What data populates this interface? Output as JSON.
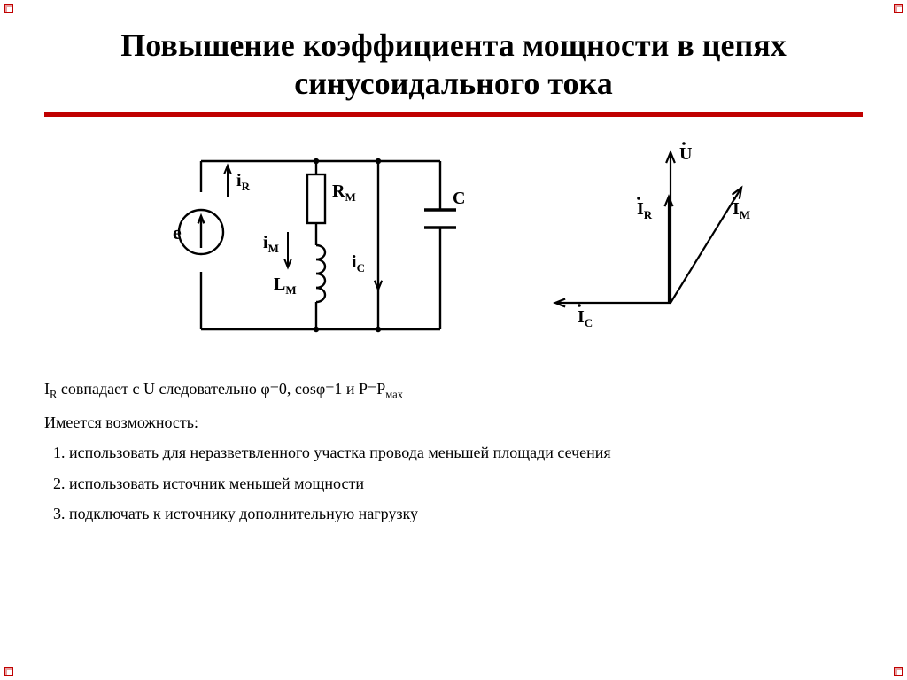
{
  "title": "Повышение коэффициента мощности в цепях синусоидального тока",
  "statement_html": "I<sub>R</sub> совпадает с U следовательно φ=0, cosφ=1 и P=P<sub>мах</sub>",
  "lead": "Имеется возможность:",
  "items": [
    "использовать для неразветвленного участка провода меньшей площади сечения",
    "использовать источник меньшей мощности",
    "подключать к источнику дополнительную нагрузку"
  ],
  "circuit": {
    "stroke": "#000000",
    "sw": 2.4,
    "labels": {
      "e": "e",
      "iR": "iR",
      "RM": "RМ",
      "iM": "iM",
      "LM": "LМ",
      "iC": "iC",
      "C": "C"
    }
  },
  "phasor": {
    "stroke": "#000000",
    "sw": 2.2,
    "labels": {
      "U": "U",
      "IR": "IR",
      "IM": "IM",
      "IC": "IC"
    }
  }
}
